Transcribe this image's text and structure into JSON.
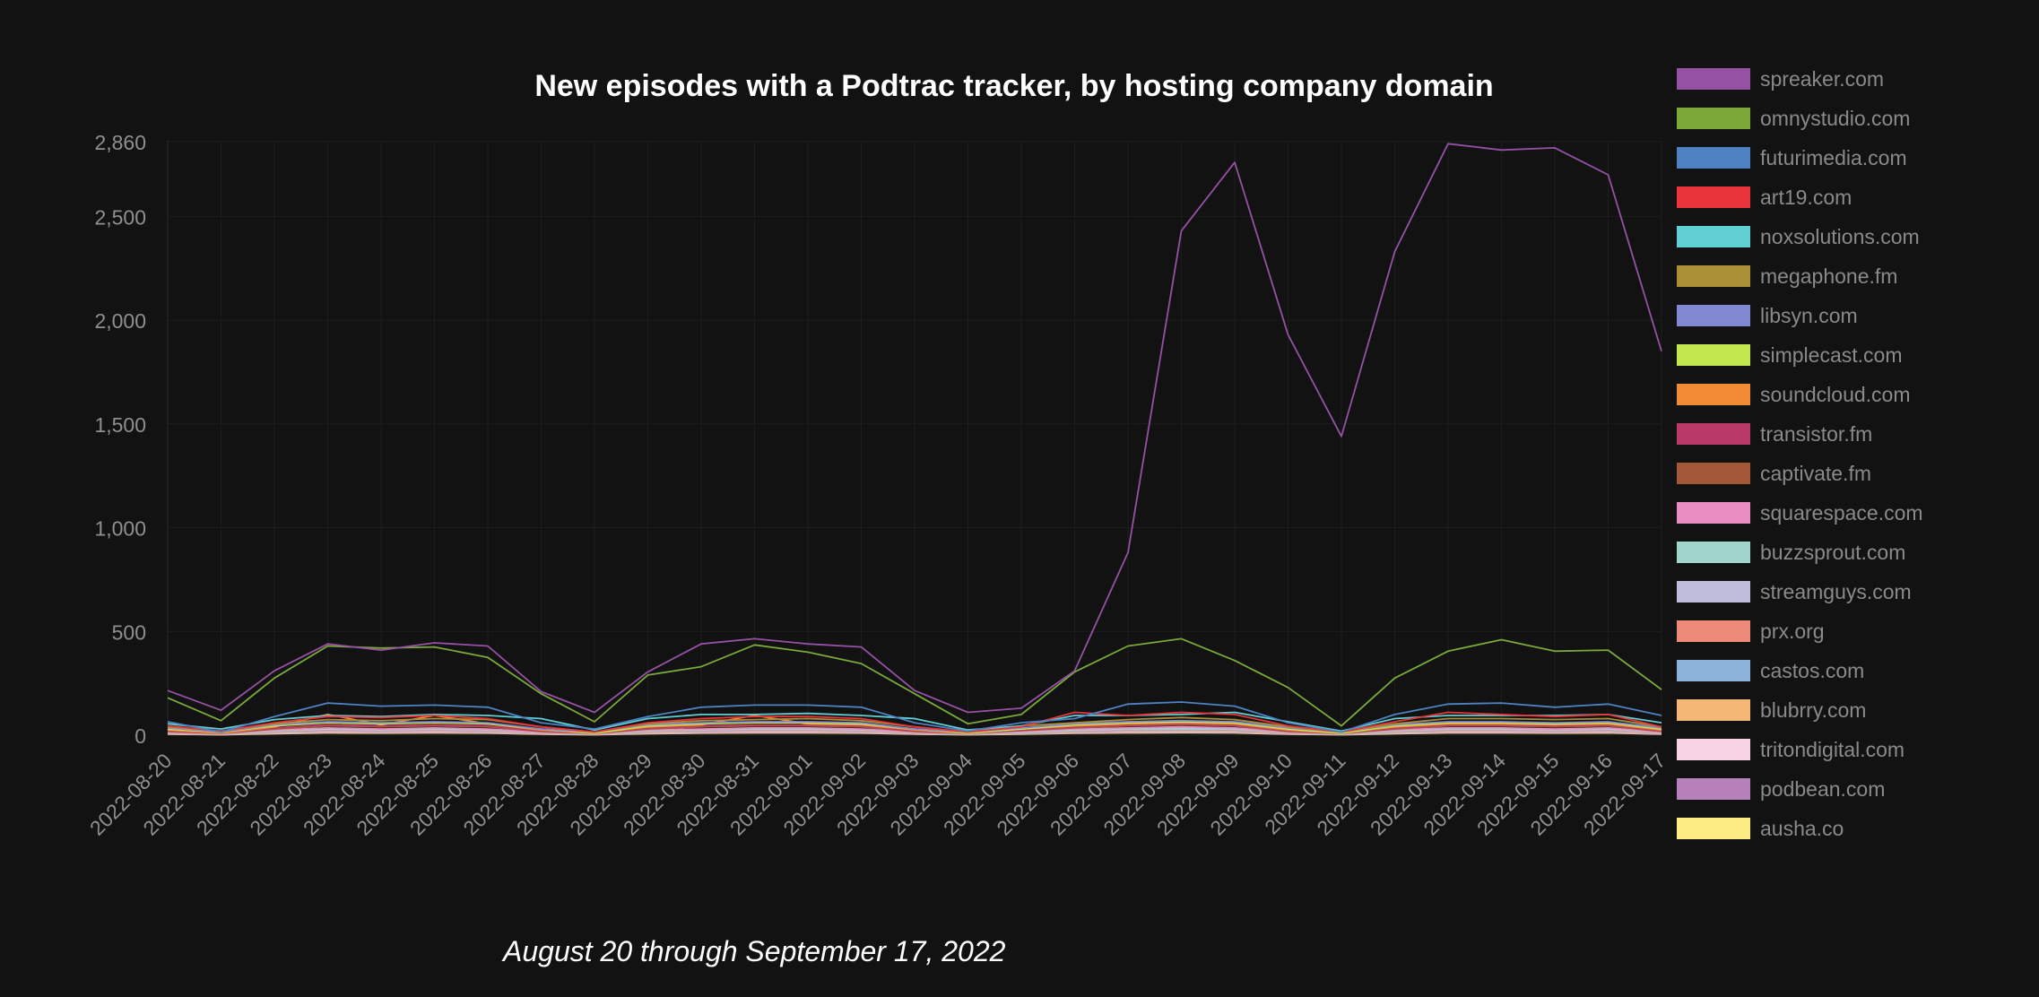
{
  "chart_data": {
    "type": "line",
    "title": "New episodes with a Podtrac tracker, by hosting company domain",
    "subtitle": "August 20 through September 17, 2022",
    "xlabel": "",
    "ylabel": "",
    "ylim": [
      0,
      2860
    ],
    "yticks": [
      0,
      500,
      1000,
      1500,
      2000,
      2500,
      2860
    ],
    "ytick_labels": [
      "0",
      "500",
      "1,000",
      "1,500",
      "2,000",
      "2,500",
      "2,860"
    ],
    "grid": true,
    "legend_position": "right",
    "categories": [
      "2022-08-20",
      "2022-08-21",
      "2022-08-22",
      "2022-08-23",
      "2022-08-24",
      "2022-08-25",
      "2022-08-26",
      "2022-08-27",
      "2022-08-28",
      "2022-08-29",
      "2022-08-30",
      "2022-08-31",
      "2022-09-01",
      "2022-09-02",
      "2022-09-03",
      "2022-09-04",
      "2022-09-05",
      "2022-09-06",
      "2022-09-07",
      "2022-09-08",
      "2022-09-09",
      "2022-09-10",
      "2022-09-11",
      "2022-09-12",
      "2022-09-13",
      "2022-09-14",
      "2022-09-15",
      "2022-09-16",
      "2022-09-17"
    ],
    "series": [
      {
        "name": "spreaker.com",
        "color": "#9552a5",
        "values": [
          215,
          120,
          310,
          440,
          410,
          445,
          430,
          210,
          110,
          305,
          440,
          465,
          440,
          425,
          215,
          110,
          130,
          310,
          880,
          2430,
          2760,
          1930,
          1440,
          2330,
          2850,
          2820,
          2830,
          2700,
          1850
        ]
      },
      {
        "name": "omnystudio.com",
        "color": "#7aa93a",
        "values": [
          180,
          70,
          275,
          430,
          420,
          425,
          375,
          200,
          65,
          290,
          330,
          435,
          400,
          345,
          200,
          55,
          100,
          305,
          430,
          465,
          360,
          230,
          45,
          275,
          405,
          460,
          405,
          410,
          220
        ]
      },
      {
        "name": "futurimedia.com",
        "color": "#4f82c3",
        "values": [
          65,
          15,
          90,
          155,
          140,
          145,
          135,
          60,
          30,
          90,
          135,
          145,
          145,
          135,
          60,
          20,
          60,
          80,
          150,
          160,
          140,
          60,
          15,
          100,
          150,
          155,
          135,
          150,
          95
        ]
      },
      {
        "name": "art19.com",
        "color": "#e8343a",
        "values": [
          45,
          20,
          60,
          90,
          85,
          95,
          80,
          40,
          15,
          60,
          80,
          90,
          90,
          80,
          40,
          15,
          40,
          110,
          95,
          110,
          100,
          45,
          15,
          65,
          110,
          100,
          90,
          100,
          40
        ]
      },
      {
        "name": "noxsolutions.com",
        "color": "#5fcfd3",
        "values": [
          55,
          30,
          75,
          95,
          90,
          100,
          95,
          80,
          25,
          80,
          100,
          100,
          105,
          95,
          80,
          25,
          45,
          95,
          95,
          100,
          110,
          65,
          20,
          80,
          95,
          95,
          95,
          100,
          60
        ]
      },
      {
        "name": "megaphone.fm",
        "color": "#ab8f35",
        "values": [
          40,
          20,
          55,
          75,
          70,
          80,
          75,
          40,
          15,
          55,
          70,
          75,
          80,
          70,
          40,
          15,
          45,
          60,
          75,
          85,
          75,
          40,
          15,
          55,
          80,
          80,
          75,
          80,
          40
        ]
      },
      {
        "name": "libsyn.com",
        "color": "#8289d2",
        "values": [
          35,
          15,
          50,
          65,
          60,
          65,
          60,
          30,
          15,
          50,
          60,
          65,
          65,
          60,
          30,
          15,
          35,
          55,
          65,
          70,
          65,
          35,
          15,
          50,
          65,
          65,
          60,
          65,
          35
        ]
      },
      {
        "name": "simplecast.com",
        "color": "#c2e84d",
        "values": [
          30,
          15,
          45,
          60,
          55,
          60,
          55,
          30,
          10,
          45,
          55,
          60,
          60,
          55,
          30,
          10,
          30,
          50,
          60,
          65,
          60,
          30,
          10,
          45,
          60,
          60,
          55,
          60,
          30
        ]
      },
      {
        "name": "soundcloud.com",
        "color": "#f28b35",
        "values": [
          25,
          10,
          40,
          100,
          50,
          95,
          55,
          25,
          10,
          40,
          50,
          95,
          55,
          50,
          25,
          10,
          30,
          45,
          55,
          60,
          55,
          25,
          10,
          40,
          55,
          55,
          50,
          55,
          25
        ]
      },
      {
        "name": "transistor.fm",
        "color": "#b93a66",
        "values": [
          20,
          10,
          35,
          50,
          45,
          50,
          45,
          20,
          10,
          35,
          45,
          50,
          50,
          45,
          20,
          10,
          25,
          40,
          50,
          55,
          50,
          20,
          10,
          35,
          50,
          50,
          45,
          50,
          20
        ]
      },
      {
        "name": "captivate.fm",
        "color": "#a35838",
        "values": [
          18,
          8,
          30,
          45,
          40,
          45,
          40,
          18,
          8,
          30,
          40,
          45,
          45,
          40,
          18,
          8,
          22,
          35,
          45,
          50,
          45,
          18,
          8,
          30,
          45,
          45,
          40,
          45,
          18
        ]
      },
      {
        "name": "squarespace.com",
        "color": "#e98dc0",
        "values": [
          15,
          8,
          25,
          35,
          30,
          35,
          30,
          15,
          8,
          25,
          30,
          35,
          35,
          30,
          15,
          8,
          18,
          30,
          35,
          40,
          35,
          15,
          8,
          25,
          35,
          35,
          30,
          35,
          15
        ]
      },
      {
        "name": "buzzsprout.com",
        "color": "#9fd5cb",
        "values": [
          14,
          7,
          22,
          32,
          28,
          32,
          28,
          14,
          7,
          22,
          28,
          32,
          32,
          28,
          14,
          7,
          16,
          26,
          32,
          35,
          32,
          14,
          7,
          22,
          32,
          32,
          28,
          32,
          14
        ]
      },
      {
        "name": "streamguys.com",
        "color": "#bebedc",
        "values": [
          12,
          6,
          20,
          28,
          25,
          28,
          25,
          12,
          6,
          20,
          25,
          28,
          28,
          25,
          12,
          6,
          14,
          22,
          28,
          30,
          28,
          12,
          6,
          20,
          28,
          28,
          25,
          28,
          12
        ]
      },
      {
        "name": "prx.org",
        "color": "#ec8a77",
        "values": [
          10,
          5,
          18,
          25,
          22,
          25,
          22,
          10,
          5,
          18,
          22,
          25,
          25,
          22,
          10,
          5,
          12,
          20,
          25,
          28,
          25,
          10,
          5,
          18,
          25,
          25,
          22,
          25,
          10
        ]
      },
      {
        "name": "castos.com",
        "color": "#8cb2d7",
        "values": [
          9,
          5,
          15,
          22,
          20,
          22,
          20,
          9,
          5,
          15,
          20,
          22,
          22,
          20,
          9,
          5,
          10,
          18,
          22,
          24,
          22,
          9,
          5,
          15,
          22,
          22,
          20,
          22,
          9
        ]
      },
      {
        "name": "blubrry.com",
        "color": "#f5b775",
        "values": [
          8,
          4,
          13,
          20,
          18,
          20,
          18,
          8,
          4,
          13,
          18,
          20,
          20,
          18,
          8,
          4,
          9,
          15,
          20,
          22,
          20,
          8,
          4,
          13,
          20,
          20,
          18,
          20,
          8
        ]
      },
      {
        "name": "tritondigital.com",
        "color": "#f6d4e5",
        "values": [
          7,
          4,
          11,
          17,
          15,
          17,
          15,
          7,
          4,
          11,
          15,
          17,
          17,
          15,
          7,
          4,
          8,
          13,
          17,
          19,
          17,
          7,
          4,
          11,
          17,
          17,
          15,
          17,
          7
        ]
      },
      {
        "name": "podbean.com",
        "color": "#b681ba",
        "values": [
          6,
          3,
          9,
          14,
          12,
          14,
          12,
          6,
          3,
          9,
          12,
          14,
          14,
          12,
          6,
          3,
          7,
          11,
          14,
          16,
          14,
          6,
          3,
          9,
          14,
          14,
          12,
          14,
          6
        ]
      },
      {
        "name": "ausha.co",
        "color": "#fcec84",
        "values": [
          5,
          2,
          7,
          11,
          10,
          11,
          10,
          5,
          2,
          7,
          10,
          11,
          11,
          10,
          5,
          2,
          5,
          9,
          11,
          12,
          11,
          5,
          2,
          7,
          11,
          11,
          10,
          11,
          5
        ]
      }
    ]
  }
}
